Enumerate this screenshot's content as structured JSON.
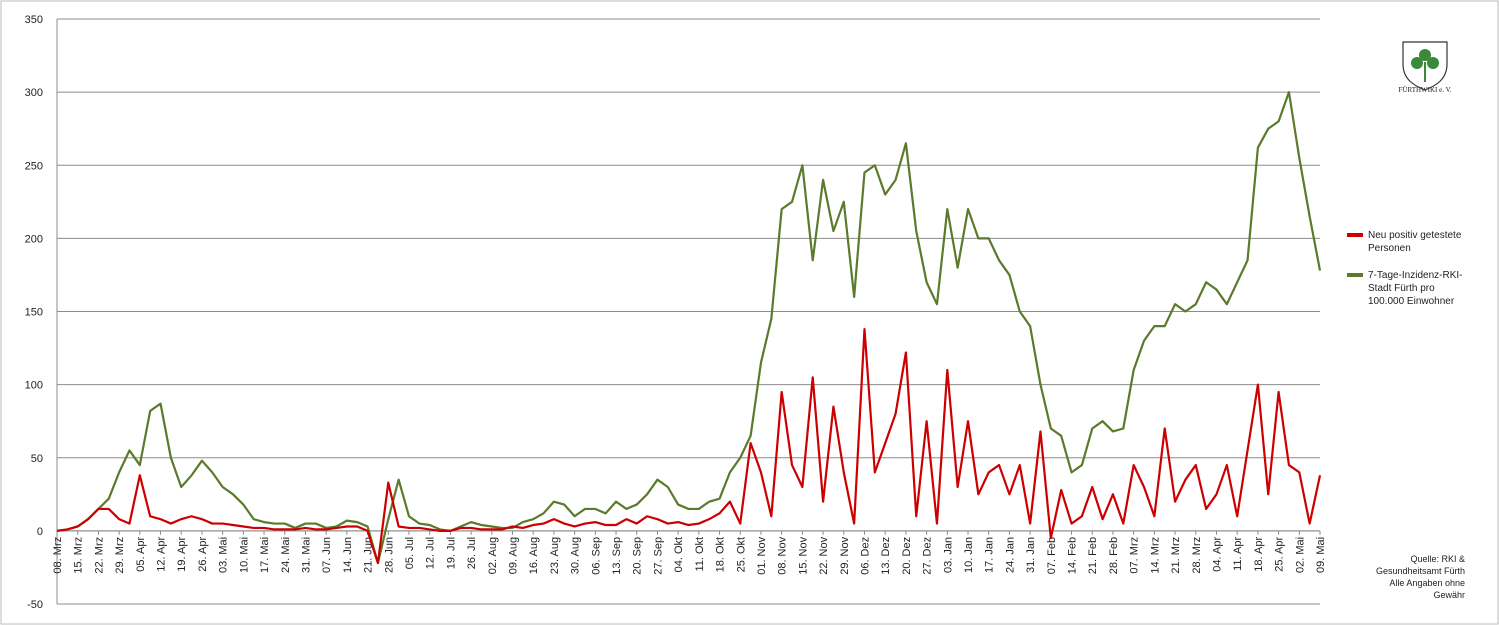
{
  "chart_data": {
    "type": "line",
    "categories": [
      "08. Mrz",
      null,
      "15. Mrz",
      null,
      "22. Mrz",
      null,
      "29. Mrz",
      null,
      "05. Apr",
      null,
      "12. Apr",
      null,
      "19. Apr",
      null,
      "26. Apr",
      null,
      "03. Mai",
      null,
      "10. Mai",
      null,
      "17. Mai",
      null,
      "24. Mai",
      null,
      "31. Mai",
      null,
      "07. Jun",
      null,
      "14. Jun",
      null,
      "21. Jun",
      null,
      "28. Jun",
      null,
      "05. Jul",
      null,
      "12. Jul",
      null,
      "19. Jul",
      null,
      "26. Jul",
      null,
      "02. Aug",
      null,
      "09. Aug",
      null,
      "16. Aug",
      null,
      "23. Aug",
      null,
      "30. Aug",
      null,
      "06. Sep",
      null,
      "13. Sep",
      null,
      "20. Sep",
      null,
      "27. Sep",
      null,
      "04. Okt",
      null,
      "11. Okt",
      null,
      "18. Okt",
      null,
      "25. Okt",
      null,
      "01. Nov",
      null,
      "08. Nov",
      null,
      "15. Nov",
      null,
      "22. Nov",
      null,
      "29. Nov",
      null,
      "06. Dez",
      null,
      "13. Dez",
      null,
      "20. Dez",
      null,
      "27. Dez",
      null,
      "03. Jan",
      null,
      "10. Jan",
      null,
      "17. Jan",
      null,
      "24. Jan",
      null,
      "31. Jan",
      null,
      "07. Feb",
      null,
      "14. Feb",
      null,
      "21. Feb",
      null,
      "28. Feb",
      null,
      "07. Mrz",
      null,
      "14. Mrz",
      null,
      "21. Mrz",
      null,
      "28. Mrz",
      null,
      "04. Apr",
      null,
      "11. Apr",
      null,
      "18. Apr",
      null,
      "25. Apr",
      null,
      "02. Mai",
      null,
      "09. Mai"
    ],
    "series": [
      {
        "name": "Neu positiv getestete Personen",
        "color": "#cc0000",
        "values": [
          0,
          1,
          3,
          8,
          15,
          15,
          8,
          5,
          38,
          10,
          8,
          5,
          8,
          10,
          8,
          5,
          5,
          4,
          3,
          2,
          2,
          1,
          1,
          1,
          2,
          1,
          1,
          2,
          3,
          3,
          0,
          -22,
          33,
          3,
          2,
          2,
          1,
          0,
          0,
          2,
          2,
          1,
          1,
          1,
          3,
          2,
          4,
          5,
          8,
          5,
          3,
          5,
          6,
          4,
          4,
          8,
          5,
          10,
          8,
          5,
          6,
          4,
          5,
          8,
          12,
          20,
          5,
          60,
          40,
          10,
          95,
          45,
          30,
          105,
          20,
          85,
          40,
          5,
          138,
          40,
          60,
          80,
          122,
          10,
          75,
          5,
          110,
          30,
          75,
          25,
          40,
          45,
          25,
          45,
          5,
          68,
          -5,
          28,
          5,
          10,
          30,
          8,
          25,
          5,
          45,
          30,
          10,
          70,
          20,
          35,
          45,
          15,
          25,
          45,
          10,
          55,
          100,
          25,
          95,
          45,
          40,
          5,
          38
        ]
      },
      {
        "name": "7-Tage-Inzidenz-RKI-Stadt Fürth pro 100.000 Einwohner",
        "color": "#5b7a2b",
        "values": [
          0,
          1,
          3,
          8,
          15,
          22,
          40,
          55,
          45,
          82,
          87,
          50,
          30,
          38,
          48,
          40,
          30,
          25,
          18,
          8,
          6,
          5,
          5,
          2,
          5,
          5,
          2,
          3,
          7,
          6,
          3,
          -22,
          8,
          35,
          10,
          5,
          4,
          1,
          0,
          3,
          6,
          4,
          3,
          2,
          2,
          6,
          8,
          12,
          20,
          18,
          10,
          15,
          15,
          12,
          20,
          15,
          18,
          25,
          35,
          30,
          18,
          15,
          15,
          20,
          22,
          40,
          50,
          65,
          115,
          145,
          220,
          225,
          250,
          185,
          240,
          205,
          225,
          160,
          245,
          250,
          230,
          240,
          265,
          205,
          170,
          155,
          220,
          180,
          220,
          200,
          200,
          185,
          175,
          150,
          140,
          100,
          70,
          65,
          40,
          45,
          70,
          75,
          68,
          70,
          110,
          130,
          140,
          140,
          155,
          150,
          155,
          170,
          165,
          155,
          170,
          185,
          262,
          275,
          280,
          300,
          255,
          215,
          178
        ]
      }
    ],
    "ylim": [
      -50,
      350
    ],
    "yticks": [
      -50,
      0,
      50,
      100,
      150,
      200,
      250,
      300,
      350
    ],
    "grid": true,
    "legend": "right",
    "annotation": "Quelle: RKI & Gesundheitsamt Fürth Alle Angaben ohne Gewähr",
    "logo_text": "FÜRTHWIKI e. V."
  }
}
